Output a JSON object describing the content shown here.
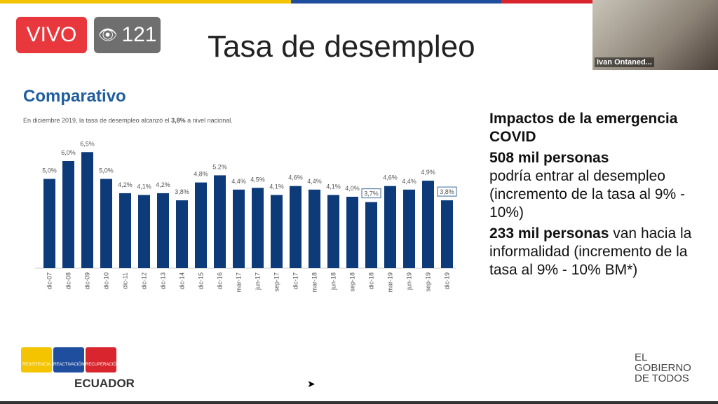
{
  "stream": {
    "live_label": "VIVO",
    "viewer_count": "121",
    "viewer_icon": "eye-icon"
  },
  "slide": {
    "title": "Tasa de desempleo",
    "section": "Comparativo",
    "subtitle_pre": "En diciembre 2019, la tasa de desempleo alcanzó el ",
    "subtitle_bold": "3,8%",
    "subtitle_post": " a nivel nacional.",
    "right": {
      "heading": "Impactos de la emergencia COVID",
      "p1_bold": "508 mil personas",
      "p1_text": "podría entrar al desempleo (incremento de la tasa al 9% - 10%)",
      "p2_bold": "233 mil personas",
      "p2_text": " van hacia la informalidad (incremento de la tasa al 9% - 10% BM*)"
    },
    "logos": {
      "l1": "RESISTENCIA",
      "l2": "REACTIVACIÓN",
      "l3": "RECUPERACIÓN",
      "country": "ECUADOR",
      "gov": "EL GOBIERNO DE TODOS"
    }
  },
  "participant": {
    "name": "Ivan Ontaned..."
  },
  "colors": {
    "bar": "#0d3b7a",
    "yellow": "#f5c400",
    "blue": "#1f4e9e",
    "red": "#d9262e"
  },
  "chart_data": {
    "type": "bar",
    "categories": [
      "dic-07",
      "dic-08",
      "dic-09",
      "dic-10",
      "dic-11",
      "dic-12",
      "dic-13",
      "dic-14",
      "dic-15",
      "dic-16",
      "mar-17",
      "jun-17",
      "sep-17",
      "dic-17",
      "mar-18",
      "jun-18",
      "sep-18",
      "dic-18",
      "mar-19",
      "jun-19",
      "sep-19",
      "dic-19"
    ],
    "values": [
      5.0,
      6.0,
      6.5,
      5.0,
      4.2,
      4.1,
      4.2,
      3.8,
      4.8,
      5.2,
      4.4,
      4.5,
      4.1,
      4.6,
      4.4,
      4.1,
      4.0,
      3.7,
      4.6,
      4.4,
      4.9,
      3.8
    ],
    "labels": [
      "5,0%",
      "6,0%",
      "6,5%",
      "5,0%",
      "4,2%",
      "4,1%",
      "4,2%",
      "3,8%",
      "4,8%",
      "5.2%",
      "4,4%",
      "4,5%",
      "4,1%",
      "4,6%",
      "4,4%",
      "4,1%",
      "4,0%",
      "3,7%",
      "4,6%",
      "4,4%",
      "4,9%",
      "3,8%"
    ],
    "highlighted": [
      "dic-18",
      "dic-19"
    ],
    "ylim": [
      0,
      7
    ],
    "grid": false
  }
}
